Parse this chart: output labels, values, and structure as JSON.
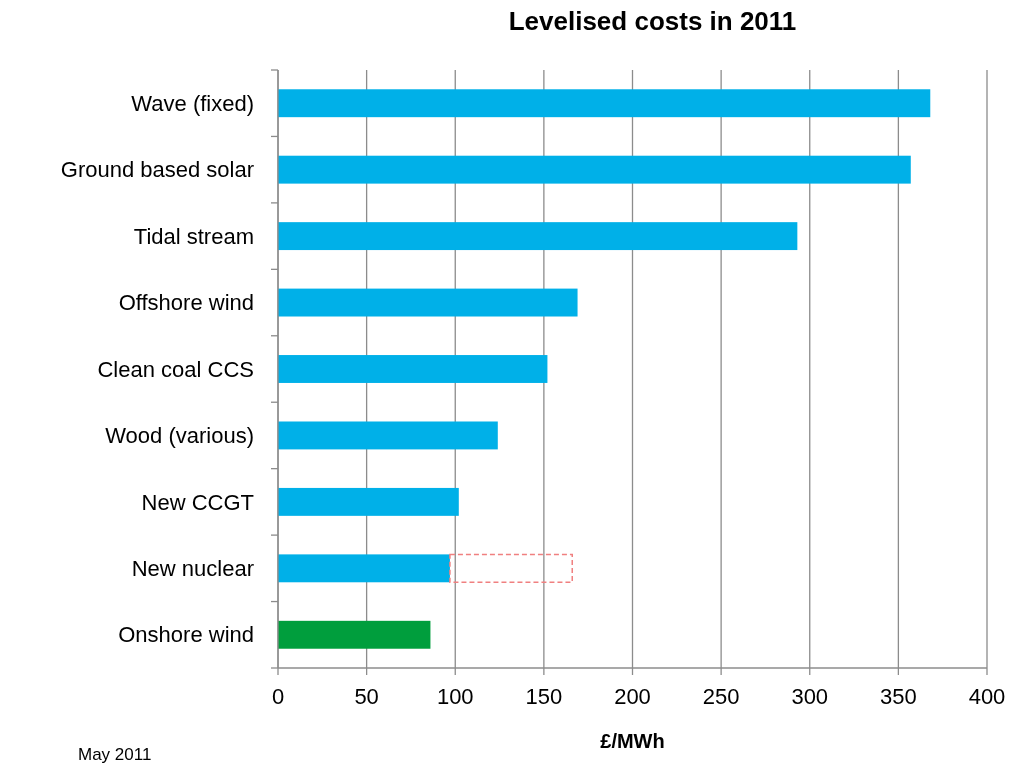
{
  "chart_data": {
    "type": "bar",
    "orientation": "horizontal",
    "stacked": true,
    "title": "Levelised costs in 2011",
    "xlabel": "£/MWh",
    "annotations": [
      "May 2011"
    ],
    "categories": [
      "Wave (fixed)",
      "Ground based solar",
      "Tidal stream",
      "Offshore wind",
      "Clean coal CCS",
      "Wood (various)",
      "New CCGT",
      "New nuclear",
      "Onshore wind"
    ],
    "series": [
      {
        "values": [
          368,
          357,
          293,
          169,
          152,
          124,
          102,
          97,
          86
        ],
        "colors": [
          "#00b0e8",
          "#00b0e8",
          "#00b0e8",
          "#00b0e8",
          "#00b0e8",
          "#00b0e8",
          "#00b0e8",
          "#00b0e8",
          "#009e3d"
        ]
      },
      {
        "values": [
          null,
          null,
          null,
          null,
          null,
          null,
          null,
          69,
          null
        ],
        "color": "#f08080",
        "line_style": "dashed"
      }
    ],
    "xlim": [
      0,
      400
    ],
    "xticks": [
      0,
      50,
      100,
      150,
      200,
      250,
      300,
      350,
      400
    ],
    "grid": "x"
  }
}
